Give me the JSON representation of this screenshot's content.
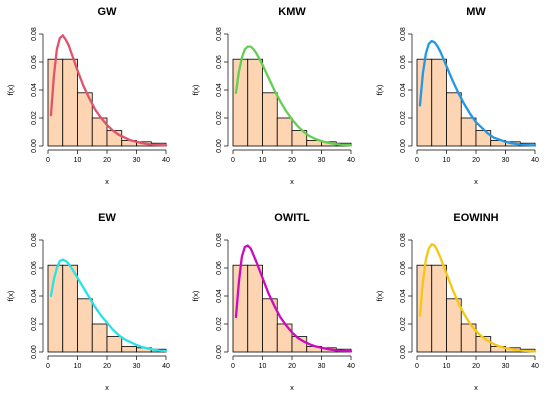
{
  "chart_data": [
    {
      "type": "bar",
      "title": "GW",
      "xlabel": "x",
      "ylabel": "f(x)",
      "xlim": [
        0,
        40
      ],
      "ylim": [
        0,
        0.08
      ],
      "xticks": [
        "0",
        "10",
        "20",
        "30",
        "40"
      ],
      "yticks": [
        "0.00",
        "0.02",
        "0.04",
        "0.06",
        "0.08"
      ],
      "histogram": {
        "bins": [
          0,
          5,
          10,
          15,
          20,
          25,
          30,
          35,
          40
        ],
        "density": [
          0.062,
          0.062,
          0.038,
          0.02,
          0.011,
          0.004,
          0.003,
          0.002
        ]
      },
      "series": [
        {
          "name": "GW",
          "color": "#DF536B",
          "points": [
            [
              1,
              0.022
            ],
            [
              2,
              0.05
            ],
            [
              3,
              0.069
            ],
            [
              4,
              0.077
            ],
            [
              5,
              0.079
            ],
            [
              6,
              0.076
            ],
            [
              7,
              0.072
            ],
            [
              8,
              0.066
            ],
            [
              10,
              0.054
            ],
            [
              12,
              0.043
            ],
            [
              14,
              0.034
            ],
            [
              16,
              0.026
            ],
            [
              18,
              0.02
            ],
            [
              20,
              0.015
            ],
            [
              22,
              0.011
            ],
            [
              24,
              0.008
            ],
            [
              26,
              0.006
            ],
            [
              28,
              0.004
            ],
            [
              30,
              0.003
            ],
            [
              32,
              0.002
            ],
            [
              35,
              0.001
            ],
            [
              38,
              0.0006
            ],
            [
              40,
              0.0004
            ]
          ]
        }
      ]
    },
    {
      "type": "bar",
      "title": "KMW",
      "xlabel": "x",
      "ylabel": "f(x)",
      "xlim": [
        0,
        40
      ],
      "ylim": [
        0,
        0.08
      ],
      "xticks": [
        "0",
        "10",
        "20",
        "30",
        "40"
      ],
      "yticks": [
        "0.00",
        "0.02",
        "0.04",
        "0.06",
        "0.08"
      ],
      "histogram": {
        "bins": [
          0,
          5,
          10,
          15,
          20,
          25,
          30,
          35,
          40
        ],
        "density": [
          0.062,
          0.062,
          0.038,
          0.02,
          0.011,
          0.004,
          0.003,
          0.002
        ]
      },
      "series": [
        {
          "name": "KMW",
          "color": "#61D04F",
          "points": [
            [
              1,
              0.038
            ],
            [
              2,
              0.053
            ],
            [
              3,
              0.063
            ],
            [
              4,
              0.069
            ],
            [
              5,
              0.071
            ],
            [
              6,
              0.071
            ],
            [
              7,
              0.069
            ],
            [
              8,
              0.066
            ],
            [
              10,
              0.058
            ],
            [
              12,
              0.049
            ],
            [
              14,
              0.04
            ],
            [
              16,
              0.032
            ],
            [
              18,
              0.025
            ],
            [
              20,
              0.019
            ],
            [
              22,
              0.014
            ],
            [
              24,
              0.01
            ],
            [
              26,
              0.007
            ],
            [
              28,
              0.005
            ],
            [
              30,
              0.0035
            ],
            [
              32,
              0.0024
            ],
            [
              35,
              0.0013
            ],
            [
              38,
              0.0007
            ],
            [
              40,
              0.0005
            ]
          ]
        }
      ]
    },
    {
      "type": "bar",
      "title": "MW",
      "xlabel": "x",
      "ylabel": "f(x)",
      "xlim": [
        0,
        40
      ],
      "ylim": [
        0,
        0.08
      ],
      "xticks": [
        "0",
        "10",
        "20",
        "30",
        "40"
      ],
      "yticks": [
        "0.00",
        "0.02",
        "0.04",
        "0.06",
        "0.08"
      ],
      "histogram": {
        "bins": [
          0,
          5,
          10,
          15,
          20,
          25,
          30,
          35,
          40
        ],
        "density": [
          0.062,
          0.062,
          0.038,
          0.02,
          0.011,
          0.004,
          0.003,
          0.002
        ]
      },
      "series": [
        {
          "name": "MW",
          "color": "#2297E6",
          "points": [
            [
              1,
              0.029
            ],
            [
              2,
              0.052
            ],
            [
              3,
              0.066
            ],
            [
              4,
              0.073
            ],
            [
              5,
              0.075
            ],
            [
              6,
              0.074
            ],
            [
              7,
              0.071
            ],
            [
              8,
              0.067
            ],
            [
              10,
              0.057
            ],
            [
              12,
              0.047
            ],
            [
              14,
              0.038
            ],
            [
              16,
              0.03
            ],
            [
              18,
              0.023
            ],
            [
              20,
              0.017
            ],
            [
              22,
              0.013
            ],
            [
              24,
              0.009
            ],
            [
              26,
              0.006
            ],
            [
              28,
              0.0045
            ],
            [
              30,
              0.003
            ],
            [
              32,
              0.002
            ],
            [
              35,
              0.0011
            ],
            [
              38,
              0.0006
            ],
            [
              40,
              0.0004
            ]
          ]
        }
      ]
    },
    {
      "type": "bar",
      "title": "EW",
      "xlabel": "x",
      "ylabel": "f(x)",
      "xlim": [
        0,
        40
      ],
      "ylim": [
        0,
        0.08
      ],
      "xticks": [
        "0",
        "10",
        "20",
        "30",
        "40"
      ],
      "yticks": [
        "0.00",
        "0.02",
        "0.04",
        "0.06",
        "0.08"
      ],
      "histogram": {
        "bins": [
          0,
          5,
          10,
          15,
          20,
          25,
          30,
          35,
          40
        ],
        "density": [
          0.062,
          0.062,
          0.038,
          0.02,
          0.011,
          0.004,
          0.003,
          0.002
        ]
      },
      "series": [
        {
          "name": "EW",
          "color": "#28E2E5",
          "points": [
            [
              1,
              0.04
            ],
            [
              2,
              0.052
            ],
            [
              3,
              0.06
            ],
            [
              4,
              0.065
            ],
            [
              5,
              0.066
            ],
            [
              6,
              0.065
            ],
            [
              7,
              0.063
            ],
            [
              8,
              0.06
            ],
            [
              10,
              0.053
            ],
            [
              12,
              0.046
            ],
            [
              14,
              0.039
            ],
            [
              16,
              0.032
            ],
            [
              18,
              0.026
            ],
            [
              20,
              0.021
            ],
            [
              22,
              0.016
            ],
            [
              24,
              0.012
            ],
            [
              26,
              0.009
            ],
            [
              28,
              0.007
            ],
            [
              30,
              0.005
            ],
            [
              32,
              0.0035
            ],
            [
              35,
              0.002
            ],
            [
              38,
              0.001
            ],
            [
              40,
              0.0007
            ]
          ]
        }
      ]
    },
    {
      "type": "bar",
      "title": "OWITL",
      "xlabel": "x",
      "ylabel": "f(x)",
      "xlim": [
        0,
        40
      ],
      "ylim": [
        0,
        0.08
      ],
      "xticks": [
        "0",
        "10",
        "20",
        "30",
        "40"
      ],
      "yticks": [
        "0.00",
        "0.02",
        "0.04",
        "0.06",
        "0.08"
      ],
      "histogram": {
        "bins": [
          0,
          5,
          10,
          15,
          20,
          25,
          30,
          35,
          40
        ],
        "density": [
          0.062,
          0.062,
          0.038,
          0.02,
          0.011,
          0.004,
          0.003,
          0.002
        ]
      },
      "series": [
        {
          "name": "OWITL",
          "color": "#CD0BBC",
          "points": [
            [
              1,
              0.025
            ],
            [
              2,
              0.05
            ],
            [
              3,
              0.068
            ],
            [
              4,
              0.075
            ],
            [
              5,
              0.076
            ],
            [
              6,
              0.074
            ],
            [
              7,
              0.069
            ],
            [
              8,
              0.064
            ],
            [
              10,
              0.053
            ],
            [
              12,
              0.042
            ],
            [
              14,
              0.033
            ],
            [
              16,
              0.025
            ],
            [
              18,
              0.019
            ],
            [
              20,
              0.014
            ],
            [
              22,
              0.01
            ],
            [
              24,
              0.0075
            ],
            [
              26,
              0.0055
            ],
            [
              28,
              0.004
            ],
            [
              30,
              0.003
            ],
            [
              32,
              0.0021
            ],
            [
              35,
              0.0012
            ],
            [
              38,
              0.0007
            ],
            [
              40,
              0.0005
            ]
          ]
        }
      ]
    },
    {
      "type": "bar",
      "title": "EOWINH",
      "xlabel": "x",
      "ylabel": "f(x)",
      "xlim": [
        0,
        40
      ],
      "ylim": [
        0,
        0.08
      ],
      "xticks": [
        "0",
        "10",
        "20",
        "30",
        "40"
      ],
      "yticks": [
        "0.00",
        "0.02",
        "0.04",
        "0.06",
        "0.08"
      ],
      "histogram": {
        "bins": [
          0,
          5,
          10,
          15,
          20,
          25,
          30,
          35,
          40
        ],
        "density": [
          0.062,
          0.062,
          0.038,
          0.02,
          0.011,
          0.004,
          0.003,
          0.002
        ]
      },
      "series": [
        {
          "name": "EOWINH",
          "color": "#F5C710",
          "points": [
            [
              1,
              0.026
            ],
            [
              2,
              0.05
            ],
            [
              3,
              0.066
            ],
            [
              4,
              0.074
            ],
            [
              5,
              0.077
            ],
            [
              6,
              0.076
            ],
            [
              7,
              0.072
            ],
            [
              8,
              0.067
            ],
            [
              10,
              0.056
            ],
            [
              12,
              0.045
            ],
            [
              14,
              0.035
            ],
            [
              16,
              0.027
            ],
            [
              18,
              0.02
            ],
            [
              20,
              0.015
            ],
            [
              22,
              0.011
            ],
            [
              24,
              0.008
            ],
            [
              26,
              0.0057
            ],
            [
              28,
              0.004
            ],
            [
              30,
              0.0028
            ],
            [
              32,
              0.002
            ],
            [
              35,
              0.0011
            ],
            [
              38,
              0.0006
            ],
            [
              40,
              0.0004
            ]
          ]
        }
      ]
    }
  ]
}
